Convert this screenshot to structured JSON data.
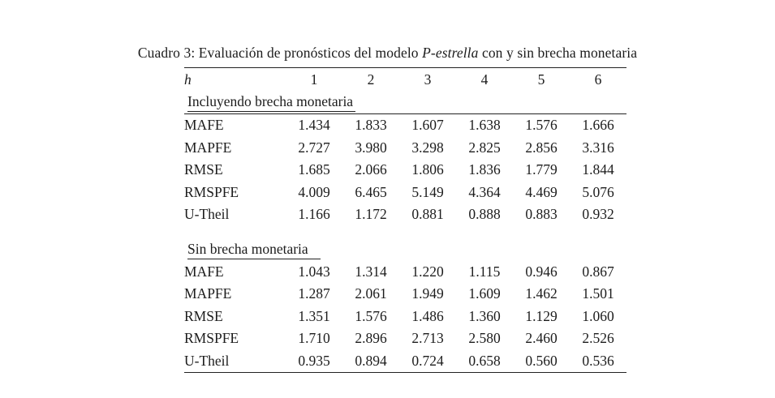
{
  "title": {
    "prefix": "Cuadro 3: Evaluación de pronósticos del modelo ",
    "model": "P-estrella",
    "suffix": " con y sin brecha monetaria"
  },
  "table": {
    "header": {
      "h": "h",
      "cols": [
        "1",
        "2",
        "3",
        "4",
        "5",
        "6"
      ]
    },
    "sections": [
      {
        "label": "Incluyendo brecha monetaria",
        "rows": [
          {
            "label": "MAFE",
            "values": [
              "1.434",
              "1.833",
              "1.607",
              "1.638",
              "1.576",
              "1.666"
            ]
          },
          {
            "label": "MAPFE",
            "values": [
              "2.727",
              "3.980",
              "3.298",
              "2.825",
              "2.856",
              "3.316"
            ]
          },
          {
            "label": "RMSE",
            "values": [
              "1.685",
              "2.066",
              "1.806",
              "1.836",
              "1.779",
              "1.844"
            ]
          },
          {
            "label": "RMSPFE",
            "values": [
              "4.009",
              "6.465",
              "5.149",
              "4.364",
              "4.469",
              "5.076"
            ]
          },
          {
            "label": "U-Theil",
            "values": [
              "1.166",
              "1.172",
              "0.881",
              "0.888",
              "0.883",
              "0.932"
            ]
          }
        ]
      },
      {
        "label": "Sin brecha monetaria",
        "rows": [
          {
            "label": "MAFE",
            "values": [
              "1.043",
              "1.314",
              "1.220",
              "1.115",
              "0.946",
              "0.867"
            ]
          },
          {
            "label": "MAPFE",
            "values": [
              "1.287",
              "2.061",
              "1.949",
              "1.609",
              "1.462",
              "1.501"
            ]
          },
          {
            "label": "RMSE",
            "values": [
              "1.351",
              "1.576",
              "1.486",
              "1.360",
              "1.129",
              "1.060"
            ]
          },
          {
            "label": "RMSPFE",
            "values": [
              "1.710",
              "2.896",
              "2.713",
              "2.580",
              "2.460",
              "2.526"
            ]
          },
          {
            "label": "U-Theil",
            "values": [
              "0.935",
              "0.894",
              "0.724",
              "0.658",
              "0.560",
              "0.536"
            ]
          }
        ]
      }
    ]
  }
}
